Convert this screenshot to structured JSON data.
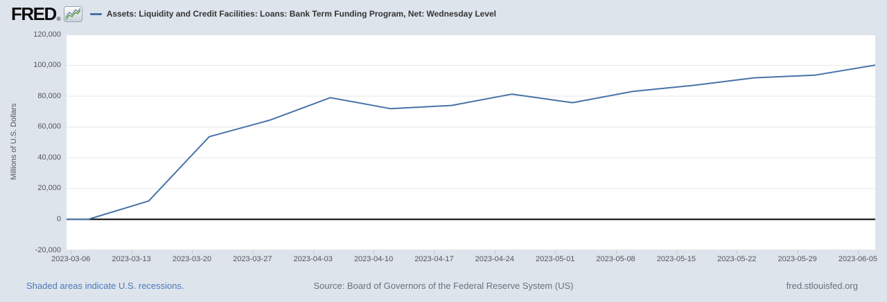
{
  "header": {
    "logo_text": "FRED",
    "registered_mark": "®",
    "series_label": "Assets: Liquidity and Credit Facilities: Loans: Bank Term Funding Program, Net: Wednesday Level"
  },
  "chart_data": {
    "type": "line",
    "title": "Assets: Liquidity and Credit Facilities: Loans: Bank Term Funding Program, Net: Wednesday Level",
    "ylabel": "Millions of U.S. Dollars",
    "x": [
      "2023-03-01",
      "2023-03-08",
      "2023-03-15",
      "2023-03-22",
      "2023-03-29",
      "2023-04-05",
      "2023-04-12",
      "2023-04-19",
      "2023-04-26",
      "2023-05-03",
      "2023-05-10",
      "2023-05-17",
      "2023-05-24",
      "2023-05-31",
      "2023-06-07"
    ],
    "values": [
      0,
      0,
      11943,
      53669,
      64403,
      79021,
      71837,
      73982,
      81327,
      75778,
      83101,
      87006,
      91907,
      93615,
      100161
    ],
    "x_tick_labels": [
      "2023-03-06",
      "2023-03-13",
      "2023-03-20",
      "2023-03-27",
      "2023-04-03",
      "2023-04-10",
      "2023-04-17",
      "2023-04-24",
      "2023-05-01",
      "2023-05-08",
      "2023-05-15",
      "2023-05-22",
      "2023-05-29",
      "2023-06-05"
    ],
    "y_ticks": [
      -20000,
      0,
      20000,
      40000,
      60000,
      80000,
      100000,
      120000
    ],
    "ylim": [
      -20000,
      120000
    ],
    "x_domain": [
      "2023-03-05T12:00:00Z",
      "2023-06-07T00:00:00Z"
    ],
    "grid": true,
    "legend_position": "top-left",
    "line_color": "#4572a7",
    "zero_line_color": "#000000",
    "grid_color": "#e6e6e6",
    "plot_bg": "#ffffff",
    "page_bg": "#dde4ec"
  },
  "footer": {
    "recession_note": "Shaded areas indicate U.S. recessions.",
    "source": "Source: Board of Governors of the Federal Reserve System (US)",
    "site": "fred.stlouisfed.org"
  }
}
